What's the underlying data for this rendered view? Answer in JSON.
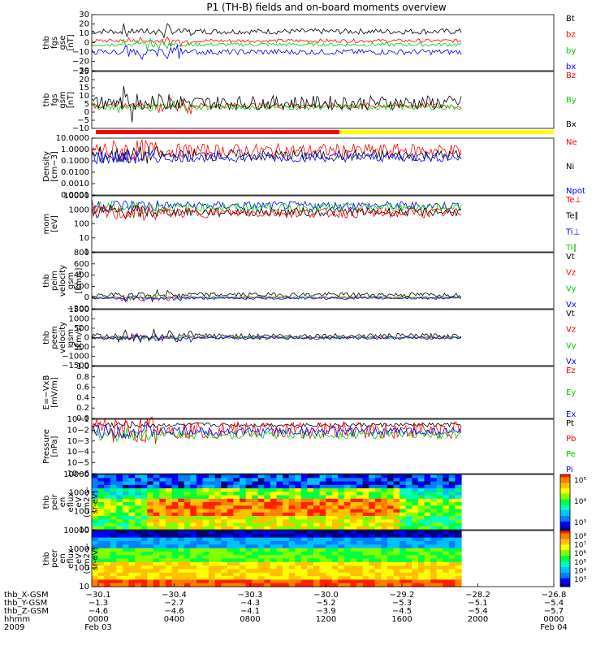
{
  "chart_data": {
    "type": "line",
    "title": "P1 (TH-B) fields and on-board moments overview",
    "colors": {
      "black": "#000000",
      "red": "#ff0000",
      "green": "#00cc00",
      "blue": "#0000ff",
      "yellow": "#ffff00"
    },
    "panels": [
      {
        "id": "fgs_gse",
        "ylabel": [
          "thb",
          "fgs",
          "gse",
          "[nT]"
        ],
        "ylim": [
          -30,
          30
        ],
        "ticks": [
          "30",
          "20",
          "10",
          "0",
          "−10",
          "−20",
          "−30"
        ],
        "legend": [
          "Bt",
          "bz",
          "by",
          "bx"
        ],
        "series": [
          {
            "name": "Bt",
            "color": "#000000",
            "level": 12,
            "noise": 3
          },
          {
            "name": "bz",
            "color": "#ff0000",
            "level": 2,
            "noise": 2
          },
          {
            "name": "by",
            "color": "#00cc00",
            "level": -2,
            "noise": 2
          },
          {
            "name": "bx",
            "color": "#0000ff",
            "level": -10,
            "noise": 3
          }
        ]
      },
      {
        "id": "fgs_gsm",
        "ylabel": [
          "thb",
          "fgs",
          "gsm",
          "[nT]"
        ],
        "ylim": [
          -15,
          25
        ],
        "ticks": [
          "25",
          "20",
          "15",
          "10",
          "5",
          "0",
          "−5",
          "−10"
        ],
        "legend": [
          "Bz",
          "By",
          "Bx"
        ],
        "series": [
          {
            "name": "Bz",
            "color": "#ff0000",
            "level": 1,
            "noise": 2
          },
          {
            "name": "By",
            "color": "#00cc00",
            "level": 0,
            "noise": 2
          },
          {
            "name": "Bx",
            "color": "#000000",
            "level": 3,
            "noise": 5
          }
        ]
      },
      {
        "id": "density",
        "ylabel": [
          "Density",
          "[cm−3]"
        ],
        "ylim": [
          0.0001,
          10
        ],
        "log": true,
        "ticks": [
          "10.0000",
          "1.0000",
          "0.1000",
          "0.0100",
          "0.0010",
          "0.0001"
        ],
        "legend": [
          "Ne",
          "Ni",
          "Npot"
        ],
        "series": [
          {
            "name": "Ne",
            "color": "#ff0000",
            "level": 0.8,
            "noise": 0.6
          },
          {
            "name": "Ni",
            "color": "#000000",
            "level": 0.3,
            "noise": 0.5
          },
          {
            "name": "Npot",
            "color": "#0000ff",
            "level": 0.2,
            "noise": 0.4
          }
        ]
      },
      {
        "id": "temp",
        "ylabel": [
          "mom",
          "[eV]"
        ],
        "ylim": [
          1,
          10000
        ],
        "log": true,
        "ticks": [
          "10000",
          "1000",
          "100",
          "10",
          "1"
        ],
        "legend": [
          "Te⊥",
          "Te∥",
          "Ti⊥",
          "Ti∥"
        ],
        "series": [
          {
            "name": "Ti⊥",
            "color": "#0000ff",
            "level": 2000,
            "noise": 0.3
          },
          {
            "name": "Ti∥",
            "color": "#00cc00",
            "level": 1500,
            "noise": 0.3
          },
          {
            "name": "Te∥",
            "color": "#000000",
            "level": 700,
            "noise": 0.3
          },
          {
            "name": "Te⊥",
            "color": "#ff0000",
            "level": 600,
            "noise": 0.35
          }
        ]
      },
      {
        "id": "peim_vel",
        "ylabel": [
          "thb",
          "peim",
          "velocity",
          "gsm",
          "[km/s]"
        ],
        "ylim": [
          -200,
          800
        ],
        "ticks": [
          "800",
          "600",
          "400",
          "200",
          "0",
          "−200"
        ],
        "legend": [
          "Vt",
          "Vz",
          "Vy",
          "Vx"
        ],
        "series": [
          {
            "name": "Vt",
            "color": "#000000",
            "level": 50,
            "noise": 40
          },
          {
            "name": "Vz",
            "color": "#ff0000",
            "level": 0,
            "noise": 20
          },
          {
            "name": "Vy",
            "color": "#00cc00",
            "level": 0,
            "noise": 20
          },
          {
            "name": "Vx",
            "color": "#0000ff",
            "level": -10,
            "noise": 25
          }
        ]
      },
      {
        "id": "peem_vel",
        "ylabel": [
          "thb",
          "peem",
          "velocity",
          "gsm",
          "[km/s]"
        ],
        "ylim": [
          -1500,
          1500
        ],
        "ticks": [
          "1500",
          "1000",
          "500",
          "0",
          "−500",
          "−1000",
          "−1500"
        ],
        "legend": [
          "Vt",
          "Vz",
          "Vy",
          "Vx"
        ],
        "series": [
          {
            "name": "Vt",
            "color": "#000000",
            "level": 100,
            "noise": 120
          },
          {
            "name": "Vz",
            "color": "#ff0000",
            "level": 0,
            "noise": 60
          },
          {
            "name": "Vy",
            "color": "#00cc00",
            "level": 0,
            "noise": 60
          },
          {
            "name": "Vx",
            "color": "#0000ff",
            "level": -20,
            "noise": 80
          }
        ]
      },
      {
        "id": "efield",
        "ylabel": [
          "E=−VxB",
          "[mV/m]"
        ],
        "ylim": [
          0,
          1
        ],
        "ticks": [
          "1.0",
          "0.8",
          "0.6",
          "0.4",
          "0.2",
          "0.0"
        ],
        "legend": [
          "Ez",
          "Ey",
          "Ex"
        ],
        "series": []
      },
      {
        "id": "pressure",
        "ylabel": [
          "Pressure",
          "[nPa]"
        ],
        "ylim": [
          1e-06,
          0.1
        ],
        "log": true,
        "ticks": [
          "10−1",
          "10−2",
          "10−3",
          "10−4",
          "10−5",
          "10−6"
        ],
        "legend": [
          "Pt",
          "Pb",
          "Pe",
          "Pi"
        ],
        "series": [
          {
            "name": "Pt",
            "color": "#000000",
            "level": 0.03,
            "noise": 0.2
          },
          {
            "name": "Pb",
            "color": "#ff0000",
            "level": 0.01,
            "noise": 0.8
          },
          {
            "name": "Pe",
            "color": "#00cc00",
            "level": 0.004,
            "noise": 0.4
          },
          {
            "name": "Pi",
            "color": "#0000ff",
            "level": 0.008,
            "noise": 0.4
          }
        ]
      },
      {
        "id": "peir_spec",
        "ylabel": [
          "thb",
          "peir",
          "en",
          "eflux",
          "eV",
          "(cm2-s-",
          "sr-eV)"
        ],
        "ylim": [
          10,
          10000
        ],
        "log": true,
        "spectrogram": true,
        "ticks": [
          "10000",
          "1000",
          "100",
          "10"
        ],
        "colorbar_ticks": [
          "10⁵",
          "10⁴",
          "10³"
        ]
      },
      {
        "id": "peer_spec",
        "ylabel": [
          "thb",
          "peer",
          "en",
          "eflux",
          "eV",
          "(cm2-s-",
          "sr-eV)"
        ],
        "ylim": [
          10,
          10000
        ],
        "log": true,
        "spectrogram": true,
        "ticks": [
          "10000",
          "1000",
          "100",
          "10"
        ],
        "colorbar_ticks": [
          "10⁸",
          "10⁷",
          "10⁶",
          "10⁵",
          "10⁴",
          "10³"
        ]
      }
    ],
    "xaxis": {
      "row_labels": [
        "thb_X-GSM",
        "thb_Y-GSM",
        "thb_Z-GSM",
        "hhmm",
        "2009"
      ],
      "columns": [
        [
          "−30.1",
          "−1.3",
          "−4.6",
          "0000",
          "Feb 03"
        ],
        [
          "−30.4",
          "−2.7",
          "−4.6",
          "0400",
          ""
        ],
        [
          "−30.3",
          "−4.3",
          "−4.1",
          "0800",
          ""
        ],
        [
          "−30.0",
          "−5.2",
          "−3.9",
          "1200",
          ""
        ],
        [
          "−29.2",
          "−5.3",
          "−4.5",
          "1600",
          ""
        ],
        [
          "−28.2",
          "−5.1",
          "−5.4",
          "2000",
          ""
        ],
        [
          "−26.8",
          "−5.4",
          "−5.7",
          "0000",
          "Feb 04"
        ]
      ]
    }
  }
}
